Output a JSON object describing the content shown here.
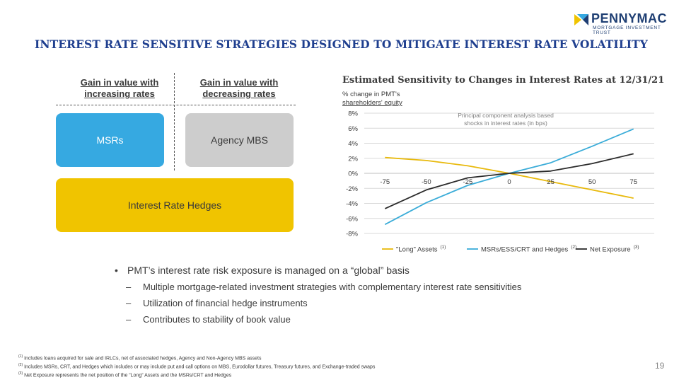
{
  "brand": {
    "name": "PENNYMAC",
    "subtitle": "MORTGAGE INVESTMENT TRUST",
    "colors": {
      "navy": "#1f3f73",
      "title_blue": "#1f3f8f",
      "gold": "#f0c400",
      "light_blue": "#36a9e1",
      "gray": "#cdcdcd"
    }
  },
  "page_title": "INTEREST RATE SENSITIVE STRATEGIES DESIGNED TO MITIGATE INTEREST RATE VOLATILITY",
  "diagram": {
    "left_header": "Gain in value with increasing rates",
    "right_header": "Gain in value with decreasing rates",
    "box_msr": "MSRs",
    "box_mbs": "Agency MBS",
    "box_hedges": "Interest Rate Hedges"
  },
  "chart_title": "Estimated Sensitivity to Changes in Interest Rates at 12/31/21",
  "chart_data": {
    "type": "line",
    "title": "Estimated Sensitivity to Changes in Interest Rates at 12/31/21",
    "ylabel_line1": "% change in PMT's",
    "ylabel_line2": "shareholders' equity",
    "xlabel": "",
    "annotation_line1": "Principal component analysis based",
    "annotation_line2": "shocks in interest rates (in bps)",
    "x": [
      -75,
      -50,
      -25,
      0,
      25,
      50,
      75
    ],
    "x_tick_labels": [
      "-75",
      "-50",
      "-25",
      "0",
      "25",
      "50",
      "75"
    ],
    "ylim": [
      -8,
      8
    ],
    "y_ticks": [
      8,
      6,
      4,
      2,
      0,
      -2,
      -4,
      -6,
      -8
    ],
    "y_tick_labels": [
      "8%",
      "6%",
      "4%",
      "2%",
      "0%",
      "-2%",
      "-4%",
      "-6%",
      "-8%"
    ],
    "grid": true,
    "legend_position": "bottom",
    "series": [
      {
        "name": "\"Long\" Assets",
        "footnote": "(1)",
        "color": "#e8b90c",
        "values": [
          2.1,
          1.7,
          1.0,
          0.0,
          -1.1,
          -2.2,
          -3.3
        ]
      },
      {
        "name": "MSRs/ESS/CRT and Hedges",
        "footnote": "(2)",
        "color": "#3aacd8",
        "values": [
          -6.8,
          -3.9,
          -1.6,
          0.0,
          1.4,
          3.6,
          5.9
        ]
      },
      {
        "name": "Net Exposure",
        "footnote": "(3)",
        "color": "#2b2b2b",
        "values": [
          -4.7,
          -2.2,
          -0.6,
          0.0,
          0.3,
          1.3,
          2.6
        ]
      }
    ]
  },
  "bullets": {
    "main": "PMT’s interest rate risk exposure is managed on a “global” basis",
    "subs": [
      "Multiple mortgage-related investment strategies with complementary interest rate sensitivities",
      "Utilization of financial hedge instruments",
      "Contributes to stability of book value"
    ]
  },
  "footnotes": [
    {
      "mark": "(1)",
      "text": "Includes loans acquired for sale and IRLCs, net of associated hedges, Agency and Non-Agency MBS assets"
    },
    {
      "mark": "(2)",
      "text": "Includes MSRs, CRT, and Hedges which includes or may include put and call options on MBS, Eurodollar futures, Treasury futures, and Exchange-traded swaps"
    },
    {
      "mark": "(3)",
      "text": "Net Exposure represents the net position of the “Long” Assets and the MSRs/CRT and Hedges"
    }
  ],
  "page_number": "19"
}
